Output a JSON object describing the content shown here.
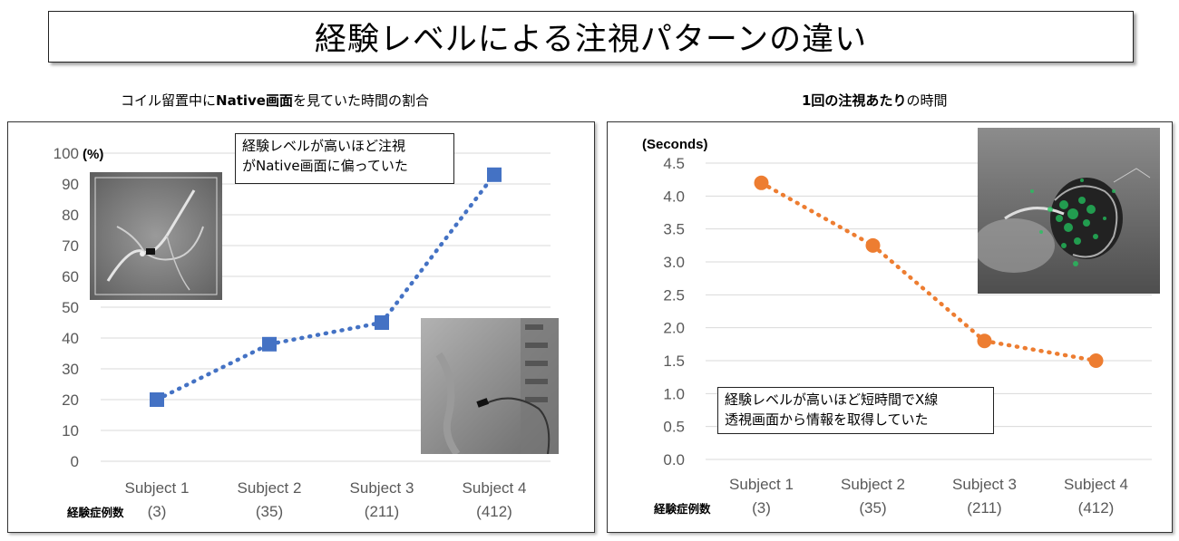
{
  "title": "経験レベルによる注視パターンの違い",
  "left_subtitle": {
    "pre": "コイル留置中に",
    "bold": "Native画面",
    "post": "を見ていた時間の割合"
  },
  "right_subtitle": {
    "bold": "1回の注視あたり",
    "post": "の時間"
  },
  "left_note": [
    "経験レベルが高いほど注視",
    "がNative画面に偏っていた"
  ],
  "right_note": [
    "経験レベルが高いほど短時間でX線",
    "透視画面から情報を取得していた"
  ],
  "experience_label": "経験症例数",
  "colors": {
    "left_series": "#4472C4",
    "right_series": "#ED7D31",
    "grid": "#D9D9D9",
    "axis_text": "#595959"
  },
  "chart_data": [
    {
      "type": "line",
      "title": "コイル留置中にNative画面を見ていた時間の割合",
      "ylabel": "(%)",
      "categories": [
        "Subject 1",
        "Subject 2",
        "Subject 3",
        "Subject 4"
      ],
      "category_sublabels": [
        "(3)",
        "(35)",
        "(211)",
        "(412)"
      ],
      "yticks": [
        "0",
        "10",
        "20",
        "30",
        "40",
        "50",
        "60",
        "70",
        "80",
        "90",
        "100"
      ],
      "ylim": [
        0,
        100
      ],
      "values": [
        20,
        38,
        45,
        93
      ],
      "marker": "square",
      "line_style": "dotted",
      "grid": true
    },
    {
      "type": "line",
      "title": "1回の注視あたりの時間",
      "ylabel": "(Seconds)",
      "categories": [
        "Subject 1",
        "Subject 2",
        "Subject 3",
        "Subject 4"
      ],
      "category_sublabels": [
        "(3)",
        "(35)",
        "(211)",
        "(412)"
      ],
      "yticks": [
        "0.0",
        "0.5",
        "1.0",
        "1.5",
        "2.0",
        "2.5",
        "3.0",
        "3.5",
        "4.0",
        "4.5"
      ],
      "ylim": [
        0,
        4.5
      ],
      "values": [
        4.2,
        3.25,
        1.8,
        1.5
      ],
      "marker": "circle",
      "line_style": "dotted",
      "grid": true
    }
  ]
}
